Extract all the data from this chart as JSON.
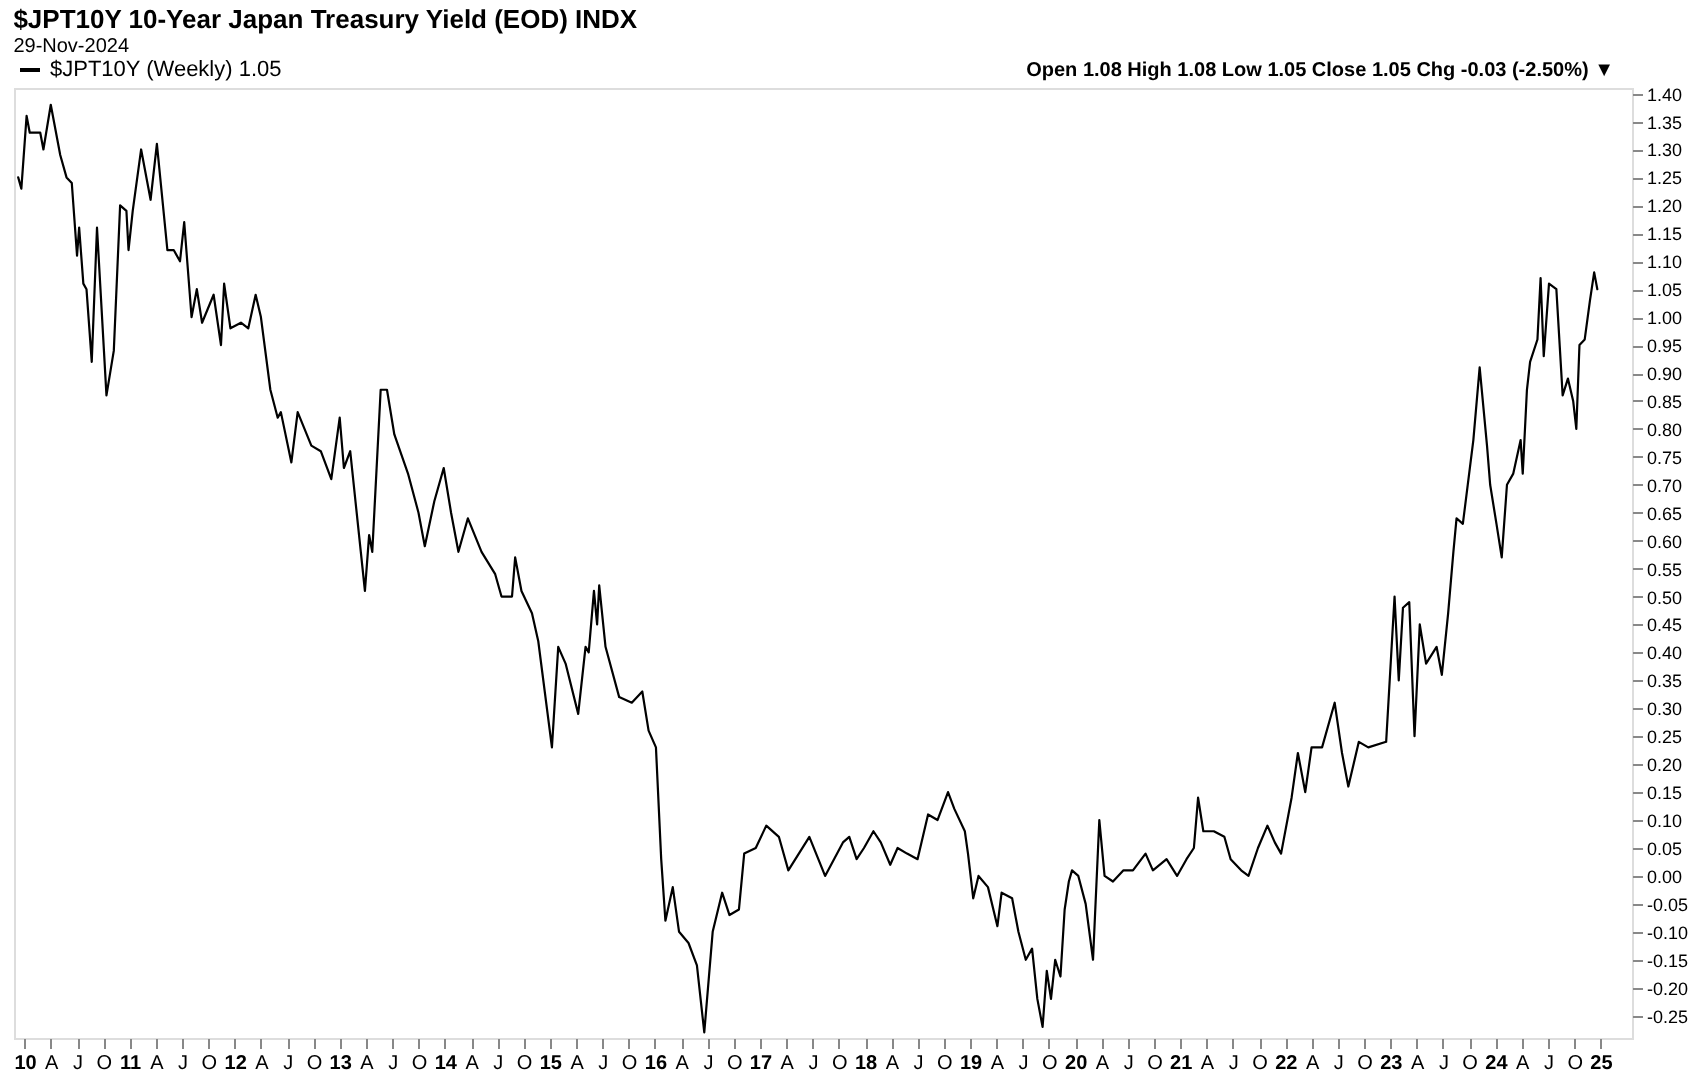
{
  "chart_data": {
    "type": "line",
    "title": "$JPT10Y 10-Year Japan Treasury Yield (EOD) INDX",
    "subtitle": "29-Nov-2024",
    "annotations": [
      "Open 1.08  High 1.08  Low 1.05  Close 1.05  Chg -0.03 (-2.50%) ▼"
    ],
    "legend": "top left",
    "grid": false,
    "marker": "none",
    "line_style": "solid",
    "xlim": [
      2009.9,
      2025.3
    ],
    "ylim": [
      -0.29,
      1.41
    ],
    "xticks": [
      {
        "value": 2010,
        "label": "10"
      },
      {
        "value": 2010.25,
        "label": "A"
      },
      {
        "value": 2010.5,
        "label": "J"
      },
      {
        "value": 2010.75,
        "label": "O"
      },
      {
        "value": 2011,
        "label": "11"
      },
      {
        "value": 2011.25,
        "label": "A"
      },
      {
        "value": 2011.5,
        "label": "J"
      },
      {
        "value": 2011.75,
        "label": "O"
      },
      {
        "value": 2012,
        "label": "12"
      },
      {
        "value": 2012.25,
        "label": "A"
      },
      {
        "value": 2012.5,
        "label": "J"
      },
      {
        "value": 2012.75,
        "label": "O"
      },
      {
        "value": 2013,
        "label": "13"
      },
      {
        "value": 2013.25,
        "label": "A"
      },
      {
        "value": 2013.5,
        "label": "J"
      },
      {
        "value": 2013.75,
        "label": "O"
      },
      {
        "value": 2014,
        "label": "14"
      },
      {
        "value": 2014.25,
        "label": "A"
      },
      {
        "value": 2014.5,
        "label": "J"
      },
      {
        "value": 2014.75,
        "label": "O"
      },
      {
        "value": 2015,
        "label": "15"
      },
      {
        "value": 2015.25,
        "label": "A"
      },
      {
        "value": 2015.5,
        "label": "J"
      },
      {
        "value": 2015.75,
        "label": "O"
      },
      {
        "value": 2016,
        "label": "16"
      },
      {
        "value": 2016.25,
        "label": "A"
      },
      {
        "value": 2016.5,
        "label": "J"
      },
      {
        "value": 2016.75,
        "label": "O"
      },
      {
        "value": 2017,
        "label": "17"
      },
      {
        "value": 2017.25,
        "label": "A"
      },
      {
        "value": 2017.5,
        "label": "J"
      },
      {
        "value": 2017.75,
        "label": "O"
      },
      {
        "value": 2018,
        "label": "18"
      },
      {
        "value": 2018.25,
        "label": "A"
      },
      {
        "value": 2018.5,
        "label": "J"
      },
      {
        "value": 2018.75,
        "label": "O"
      },
      {
        "value": 2019,
        "label": "19"
      },
      {
        "value": 2019.25,
        "label": "A"
      },
      {
        "value": 2019.5,
        "label": "J"
      },
      {
        "value": 2019.75,
        "label": "O"
      },
      {
        "value": 2020,
        "label": "20"
      },
      {
        "value": 2020.25,
        "label": "A"
      },
      {
        "value": 2020.5,
        "label": "J"
      },
      {
        "value": 2020.75,
        "label": "O"
      },
      {
        "value": 2021,
        "label": "21"
      },
      {
        "value": 2021.25,
        "label": "A"
      },
      {
        "value": 2021.5,
        "label": "J"
      },
      {
        "value": 2021.75,
        "label": "O"
      },
      {
        "value": 2022,
        "label": "22"
      },
      {
        "value": 2022.25,
        "label": "A"
      },
      {
        "value": 2022.5,
        "label": "J"
      },
      {
        "value": 2022.75,
        "label": "O"
      },
      {
        "value": 2023,
        "label": "23"
      },
      {
        "value": 2023.25,
        "label": "A"
      },
      {
        "value": 2023.5,
        "label": "J"
      },
      {
        "value": 2023.75,
        "label": "O"
      },
      {
        "value": 2024,
        "label": "24"
      },
      {
        "value": 2024.25,
        "label": "A"
      },
      {
        "value": 2024.5,
        "label": "J"
      },
      {
        "value": 2024.75,
        "label": "O"
      },
      {
        "value": 2025,
        "label": "25"
      }
    ],
    "yticks": [
      {
        "value": -0.25,
        "label": "-0.25"
      },
      {
        "value": -0.2,
        "label": "-0.20"
      },
      {
        "value": -0.15,
        "label": "-0.15"
      },
      {
        "value": -0.1,
        "label": "-0.10"
      },
      {
        "value": -0.05,
        "label": "-0.05"
      },
      {
        "value": 0,
        "label": "0.00"
      },
      {
        "value": 0.05,
        "label": "0.05"
      },
      {
        "value": 0.1,
        "label": "0.10"
      },
      {
        "value": 0.15,
        "label": "0.15"
      },
      {
        "value": 0.2,
        "label": "0.20"
      },
      {
        "value": 0.25,
        "label": "0.25"
      },
      {
        "value": 0.3,
        "label": "0.30"
      },
      {
        "value": 0.35,
        "label": "0.35"
      },
      {
        "value": 0.4,
        "label": "0.40"
      },
      {
        "value": 0.45,
        "label": "0.45"
      },
      {
        "value": 0.5,
        "label": "0.50"
      },
      {
        "value": 0.55,
        "label": "0.55"
      },
      {
        "value": 0.6,
        "label": "0.60"
      },
      {
        "value": 0.65,
        "label": "0.65"
      },
      {
        "value": 0.7,
        "label": "0.70"
      },
      {
        "value": 0.75,
        "label": "0.75"
      },
      {
        "value": 0.8,
        "label": "0.80"
      },
      {
        "value": 0.85,
        "label": "0.85"
      },
      {
        "value": 0.9,
        "label": "0.90"
      },
      {
        "value": 0.95,
        "label": "0.95"
      },
      {
        "value": 1,
        "label": "1.00"
      },
      {
        "value": 1.05,
        "label": "1.05"
      },
      {
        "value": 1.1,
        "label": "1.10"
      },
      {
        "value": 1.15,
        "label": "1.15"
      },
      {
        "value": 1.2,
        "label": "1.20"
      },
      {
        "value": 1.25,
        "label": "1.25"
      },
      {
        "value": 1.3,
        "label": "1.30"
      },
      {
        "value": 1.35,
        "label": "1.35"
      },
      {
        "value": 1.4,
        "label": "1.40"
      }
    ],
    "series": [
      {
        "name": "$JPT10Y (Weekly) 1.05",
        "color": "#000000",
        "x": [
          2009.94,
          2009.97,
          2010.02,
          2010.05,
          2010.15,
          2010.18,
          2010.25,
          2010.34,
          2010.4,
          2010.45,
          2010.5,
          2010.52,
          2010.56,
          2010.59,
          2010.64,
          2010.69,
          2010.78,
          2010.85,
          2010.91,
          2010.97,
          2010.99,
          2011.03,
          2011.11,
          2011.2,
          2011.26,
          2011.36,
          2011.42,
          2011.48,
          2011.52,
          2011.59,
          2011.64,
          2011.69,
          2011.8,
          2011.87,
          2011.9,
          2011.96,
          2012.06,
          2012.13,
          2012.2,
          2012.25,
          2012.34,
          2012.41,
          2012.44,
          2012.54,
          2012.6,
          2012.73,
          2012.82,
          2012.92,
          2013.0,
          2013.04,
          2013.1,
          2013.24,
          2013.28,
          2013.31,
          2013.39,
          2013.45,
          2013.52,
          2013.65,
          2013.75,
          2013.81,
          2013.9,
          2013.99,
          2014.06,
          2014.13,
          2014.22,
          2014.35,
          2014.48,
          2014.54,
          2014.64,
          2014.67,
          2014.73,
          2014.83,
          2014.89,
          2015.02,
          2015.08,
          2015.15,
          2015.27,
          2015.34,
          2015.37,
          2015.42,
          2015.45,
          2015.47,
          2015.53,
          2015.66,
          2015.78,
          2015.88,
          2015.94,
          2016.01,
          2016.06,
          2016.1,
          2016.17,
          2016.23,
          2016.32,
          2016.4,
          2016.47,
          2016.55,
          2016.64,
          2016.71,
          2016.8,
          2016.85,
          2016.96,
          2017.06,
          2017.18,
          2017.27,
          2017.47,
          2017.62,
          2017.79,
          2017.85,
          2017.92,
          2017.99,
          2018.08,
          2018.15,
          2018.24,
          2018.31,
          2018.4,
          2018.5,
          2018.6,
          2018.69,
          2018.79,
          2018.85,
          2018.95,
          2018.98,
          2019.03,
          2019.08,
          2019.17,
          2019.26,
          2019.3,
          2019.4,
          2019.46,
          2019.53,
          2019.59,
          2019.64,
          2019.69,
          2019.73,
          2019.77,
          2019.81,
          2019.86,
          2019.9,
          2019.94,
          2019.97,
          2020.03,
          2020.1,
          2020.17,
          2020.23,
          2020.28,
          2020.36,
          2020.46,
          2020.55,
          2020.67,
          2020.74,
          2020.87,
          2020.97,
          2021.06,
          2021.13,
          2021.17,
          2021.22,
          2021.32,
          2021.42,
          2021.48,
          2021.58,
          2021.65,
          2021.74,
          2021.83,
          2021.9,
          2021.96,
          2022.06,
          2022.12,
          2022.19,
          2022.25,
          2022.35,
          2022.47,
          2022.54,
          2022.6,
          2022.7,
          2022.79,
          2022.96,
          2023.04,
          2023.08,
          2023.12,
          2023.18,
          2023.23,
          2023.28,
          2023.34,
          2023.44,
          2023.49,
          2023.55,
          2023.6,
          2023.63,
          2023.69,
          2023.79,
          2023.85,
          2023.92,
          2023.95,
          2024.01,
          2024.06,
          2024.11,
          2024.17,
          2024.24,
          2024.26,
          2024.3,
          2024.33,
          2024.4,
          2024.43,
          2024.46,
          2024.51,
          2024.58,
          2024.64,
          2024.69,
          2024.74,
          2024.77,
          2024.8,
          2024.85,
          2024.9,
          2024.94,
          2024.97
        ],
        "values": [
          1.25,
          1.23,
          1.36,
          1.33,
          1.33,
          1.3,
          1.38,
          1.29,
          1.25,
          1.24,
          1.11,
          1.16,
          1.06,
          1.05,
          0.92,
          1.16,
          0.86,
          0.94,
          1.2,
          1.19,
          1.12,
          1.19,
          1.3,
          1.21,
          1.31,
          1.12,
          1.12,
          1.1,
          1.17,
          1.0,
          1.05,
          0.99,
          1.04,
          0.95,
          1.06,
          0.98,
          0.99,
          0.98,
          1.04,
          1.0,
          0.87,
          0.82,
          0.83,
          0.74,
          0.83,
          0.77,
          0.76,
          0.71,
          0.82,
          0.73,
          0.76,
          0.51,
          0.61,
          0.58,
          0.87,
          0.87,
          0.79,
          0.72,
          0.65,
          0.59,
          0.67,
          0.73,
          0.65,
          0.58,
          0.64,
          0.58,
          0.54,
          0.5,
          0.5,
          0.57,
          0.51,
          0.47,
          0.42,
          0.23,
          0.41,
          0.38,
          0.29,
          0.41,
          0.4,
          0.51,
          0.45,
          0.52,
          0.41,
          0.32,
          0.31,
          0.33,
          0.26,
          0.23,
          0.03,
          -0.08,
          -0.02,
          -0.1,
          -0.12,
          -0.16,
          -0.28,
          -0.1,
          -0.03,
          -0.07,
          -0.06,
          0.04,
          0.05,
          0.09,
          0.07,
          0.01,
          0.07,
          0.0,
          0.06,
          0.07,
          0.03,
          0.05,
          0.08,
          0.06,
          0.02,
          0.05,
          0.04,
          0.03,
          0.11,
          0.1,
          0.15,
          0.12,
          0.08,
          0.04,
          -0.04,
          0.0,
          -0.02,
          -0.09,
          -0.03,
          -0.04,
          -0.1,
          -0.15,
          -0.13,
          -0.22,
          -0.27,
          -0.17,
          -0.22,
          -0.15,
          -0.18,
          -0.06,
          -0.01,
          0.01,
          0.0,
          -0.05,
          -0.15,
          0.1,
          0.0,
          -0.01,
          0.01,
          0.01,
          0.04,
          0.01,
          0.03,
          0.0,
          0.03,
          0.05,
          0.14,
          0.08,
          0.08,
          0.07,
          0.03,
          0.01,
          0.0,
          0.05,
          0.09,
          0.06,
          0.04,
          0.14,
          0.22,
          0.15,
          0.23,
          0.23,
          0.31,
          0.22,
          0.16,
          0.24,
          0.23,
          0.24,
          0.5,
          0.35,
          0.48,
          0.49,
          0.25,
          0.45,
          0.38,
          0.41,
          0.36,
          0.47,
          0.58,
          0.64,
          0.63,
          0.78,
          0.91,
          0.77,
          0.7,
          0.63,
          0.57,
          0.7,
          0.72,
          0.78,
          0.72,
          0.87,
          0.92,
          0.96,
          1.07,
          0.93,
          1.06,
          1.05,
          0.86,
          0.89,
          0.85,
          0.8,
          0.95,
          0.96,
          1.03,
          1.08,
          1.05
        ]
      }
    ]
  }
}
